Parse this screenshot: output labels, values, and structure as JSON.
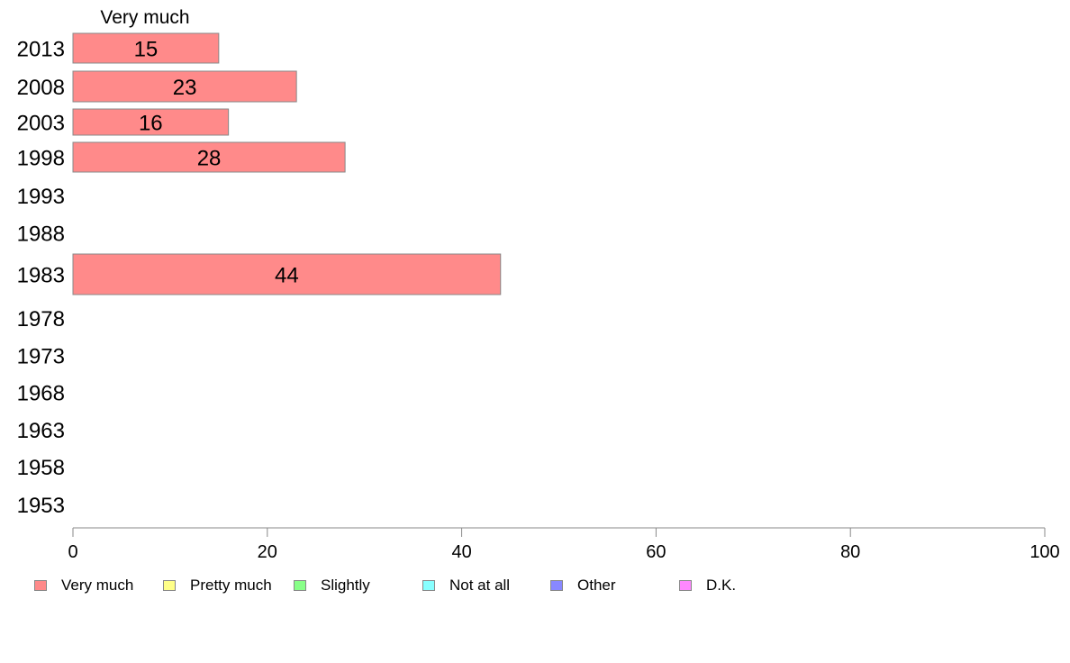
{
  "chart_data": {
    "type": "bar",
    "orientation": "horizontal",
    "stacked": true,
    "categories": [
      "2013",
      "2008",
      "2003",
      "1998",
      "1993",
      "1988",
      "1983",
      "1978",
      "1973",
      "1968",
      "1963",
      "1958",
      "1953"
    ],
    "series": [
      {
        "name": "Very much",
        "color": "#ff8a8a",
        "values": [
          15,
          23,
          16,
          28,
          null,
          null,
          44,
          null,
          null,
          null,
          null,
          null,
          null
        ]
      },
      {
        "name": "Pretty much",
        "color": "#ffff88",
        "values": [
          null,
          null,
          null,
          null,
          null,
          null,
          null,
          null,
          null,
          null,
          null,
          null,
          null
        ]
      },
      {
        "name": "Slightly",
        "color": "#88ff88",
        "values": [
          null,
          null,
          null,
          null,
          null,
          null,
          null,
          null,
          null,
          null,
          null,
          null,
          null
        ]
      },
      {
        "name": "Not at all",
        "color": "#88ffff",
        "values": [
          null,
          null,
          null,
          null,
          null,
          null,
          null,
          null,
          null,
          null,
          null,
          null,
          null
        ]
      },
      {
        "name": "Other",
        "color": "#8888ff",
        "values": [
          null,
          null,
          null,
          null,
          null,
          null,
          null,
          null,
          null,
          null,
          null,
          null,
          null
        ]
      },
      {
        "name": "D.K.",
        "color": "#ff88ff",
        "values": [
          null,
          null,
          null,
          null,
          null,
          null,
          null,
          null,
          null,
          null,
          null,
          null,
          null
        ]
      }
    ],
    "series_header": "Very much",
    "xlim": [
      0,
      100
    ],
    "xticks": [
      "0",
      "20",
      "40",
      "60",
      "80",
      "100"
    ],
    "grid": false,
    "legend_position": "bottom"
  }
}
